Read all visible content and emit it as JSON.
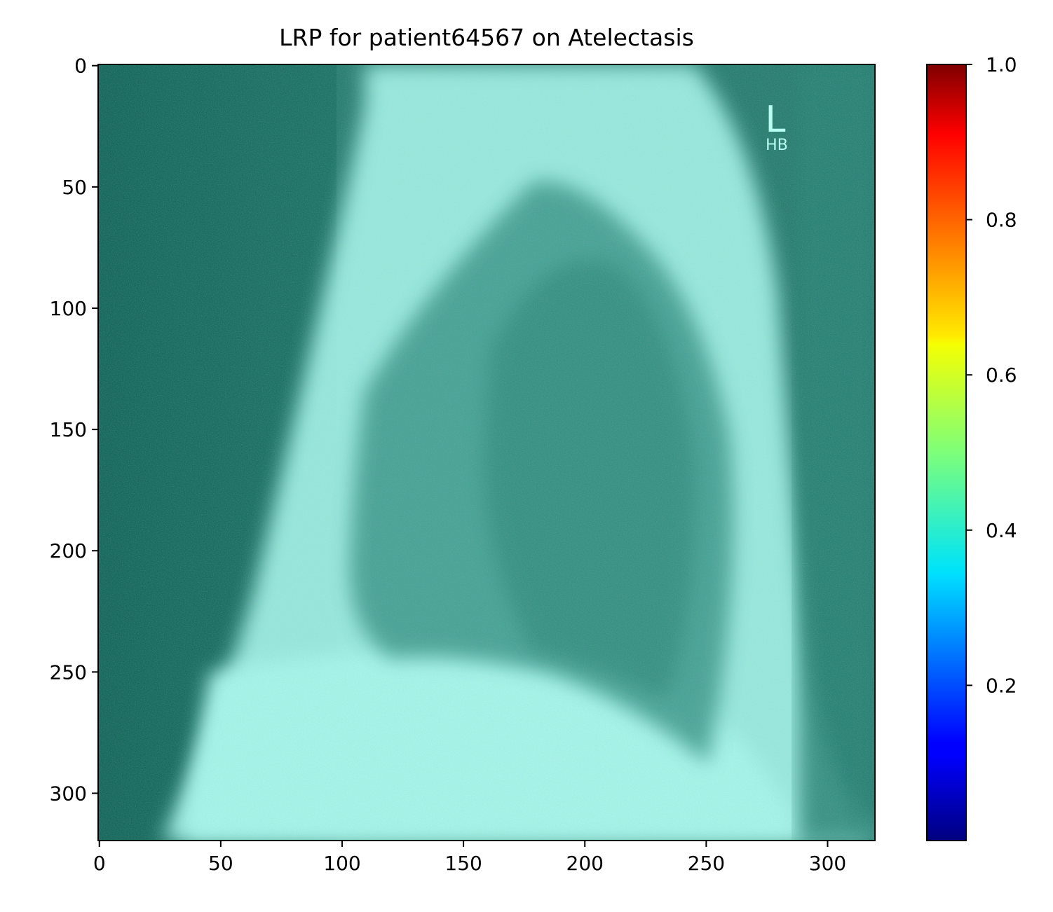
{
  "chart_data": {
    "type": "heatmap",
    "title": "LRP for patient64567 on Atelectasis",
    "xlabel": "",
    "ylabel": "",
    "image_size": [
      320,
      320
    ],
    "x_ticks": [
      0,
      50,
      100,
      150,
      200,
      250,
      300
    ],
    "x_tick_labels": [
      "0",
      "50",
      "100",
      "150",
      "200",
      "250",
      "300"
    ],
    "y_ticks": [
      0,
      50,
      100,
      150,
      200,
      250,
      300
    ],
    "y_tick_labels": [
      "0",
      "50",
      "100",
      "150",
      "200",
      "250",
      "300"
    ],
    "xlim": [
      -0.5,
      319.5
    ],
    "ylim": [
      319.5,
      -0.5
    ],
    "colorbar": {
      "colormap": "jet",
      "range": [
        0.0,
        1.0
      ],
      "ticks": [
        0.2,
        0.4,
        0.6,
        0.8,
        1.0
      ],
      "tick_labels": [
        "0.2",
        "0.4",
        "0.6",
        "0.8",
        "1.0"
      ]
    },
    "image_overlay_text": [
      "L",
      "HB"
    ],
    "background_color": "#2a7f6e",
    "highlight_color": "#a6f5e6"
  }
}
